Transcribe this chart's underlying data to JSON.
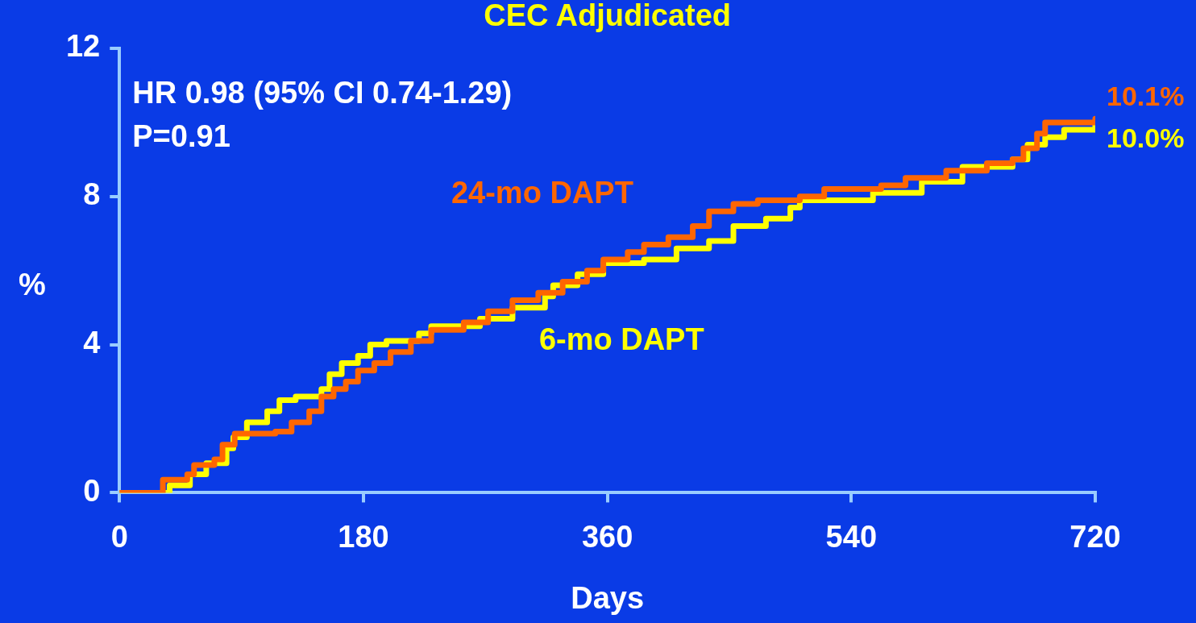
{
  "chart_data": {
    "type": "step",
    "title": "CEC Adjudicated",
    "xlabel": "Days",
    "ylabel": "%",
    "xlim": [
      0,
      720
    ],
    "xticks": [
      0,
      180,
      360,
      540,
      720
    ],
    "ylim": [
      0,
      12
    ],
    "yticks": [
      0,
      4,
      8,
      12
    ],
    "grid": false,
    "legend": false,
    "marker": "none",
    "line_style": "solid",
    "annotations": [
      "HR 0.98 (95% CI 0.74-1.29)",
      "P=0.91"
    ],
    "series": [
      {
        "name": "24-mo DAPT",
        "color": "#ff6600",
        "x": [
          0,
          32,
          50,
          55,
          70,
          76,
          85,
          115,
          127,
          140,
          149,
          158,
          167,
          176,
          188,
          200,
          215,
          230,
          254,
          272,
          290,
          309,
          327,
          345,
          357,
          375,
          387,
          405,
          423,
          435,
          453,
          471,
          502,
          520,
          562,
          580,
          610,
          640,
          659,
          667,
          677,
          683,
          720
        ],
        "values": [
          0,
          0.35,
          0.5,
          0.75,
          0.9,
          1.3,
          1.6,
          1.65,
          1.9,
          2.2,
          2.6,
          2.8,
          3.0,
          3.3,
          3.5,
          3.8,
          4.1,
          4.4,
          4.6,
          4.9,
          5.2,
          5.4,
          5.7,
          6.0,
          6.3,
          6.5,
          6.7,
          6.9,
          7.2,
          7.6,
          7.8,
          7.9,
          8.0,
          8.2,
          8.3,
          8.5,
          8.7,
          8.9,
          9.0,
          9.3,
          9.7,
          10.0,
          10.1
        ],
        "value_labels": [
          null,
          null,
          null,
          null,
          null,
          null,
          null,
          null,
          null,
          null,
          null,
          null,
          null,
          null,
          null,
          null,
          null,
          null,
          null,
          null,
          null,
          null,
          null,
          null,
          null,
          null,
          null,
          null,
          null,
          null,
          null,
          null,
          null,
          null,
          null,
          null,
          null,
          null,
          null,
          null,
          null,
          null,
          "10.1%"
        ]
      },
      {
        "name": "6-mo DAPT",
        "color": "#ffff00",
        "x": [
          0,
          37,
          52,
          64,
          79,
          84,
          94,
          109,
          118,
          130,
          149,
          155,
          164,
          176,
          185,
          197,
          221,
          230,
          266,
          290,
          314,
          320,
          338,
          357,
          387,
          411,
          435,
          453,
          477,
          495,
          502,
          556,
          592,
          622,
          659,
          670,
          683,
          697,
          720
        ],
        "values": [
          0,
          0.2,
          0.5,
          0.8,
          1.2,
          1.5,
          1.9,
          2.2,
          2.5,
          2.6,
          2.8,
          3.2,
          3.5,
          3.7,
          4.0,
          4.1,
          4.3,
          4.5,
          4.7,
          5.0,
          5.3,
          5.6,
          5.9,
          6.2,
          6.3,
          6.6,
          6.8,
          7.2,
          7.4,
          7.7,
          7.9,
          8.1,
          8.4,
          8.8,
          9.0,
          9.4,
          9.6,
          9.8,
          10.0
        ],
        "value_labels": [
          null,
          null,
          null,
          null,
          null,
          null,
          null,
          null,
          null,
          null,
          null,
          null,
          null,
          null,
          null,
          null,
          null,
          null,
          null,
          null,
          null,
          null,
          null,
          null,
          null,
          null,
          null,
          null,
          null,
          null,
          null,
          null,
          null,
          null,
          null,
          null,
          null,
          null,
          "10.0%"
        ]
      }
    ]
  }
}
